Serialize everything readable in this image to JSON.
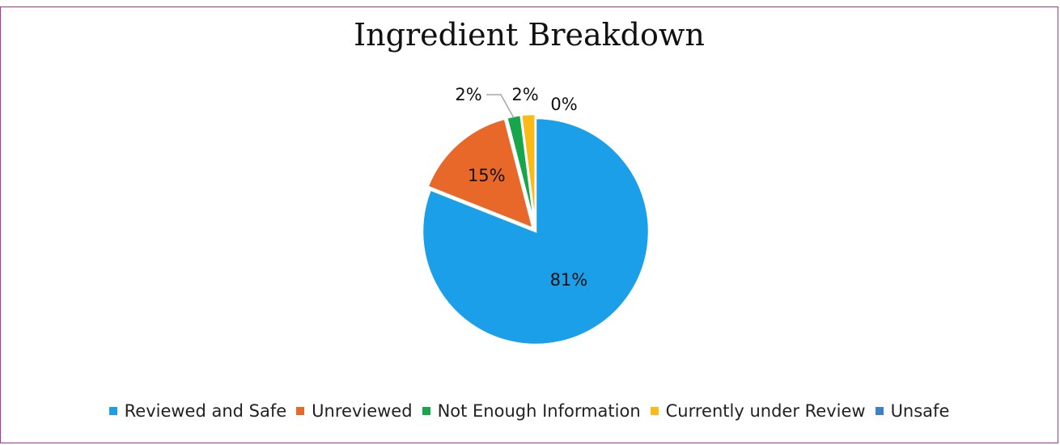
{
  "chart_data": {
    "type": "pie",
    "title": "Ingredient Breakdown",
    "start_angle_deg": 0,
    "direction": "clockwise",
    "slices": [
      {
        "name": "Reviewed and Safe",
        "value": 81,
        "label": "81%",
        "color": "#1a9fe8",
        "exploded": false
      },
      {
        "name": "Unreviewed",
        "value": 15,
        "label": "15%",
        "color": "#e8682a",
        "exploded": true
      },
      {
        "name": "Not Enough Information",
        "value": 2,
        "label": "2%",
        "color": "#17a64b",
        "exploded": true
      },
      {
        "name": "Currently under Review",
        "value": 2,
        "label": "2%",
        "color": "#fbba16",
        "exploded": true
      },
      {
        "name": "Unsafe",
        "value": 0,
        "label": "0%",
        "color": "#3d80c8",
        "exploded": true
      }
    ],
    "legend_position": "bottom",
    "data_labels": true
  }
}
